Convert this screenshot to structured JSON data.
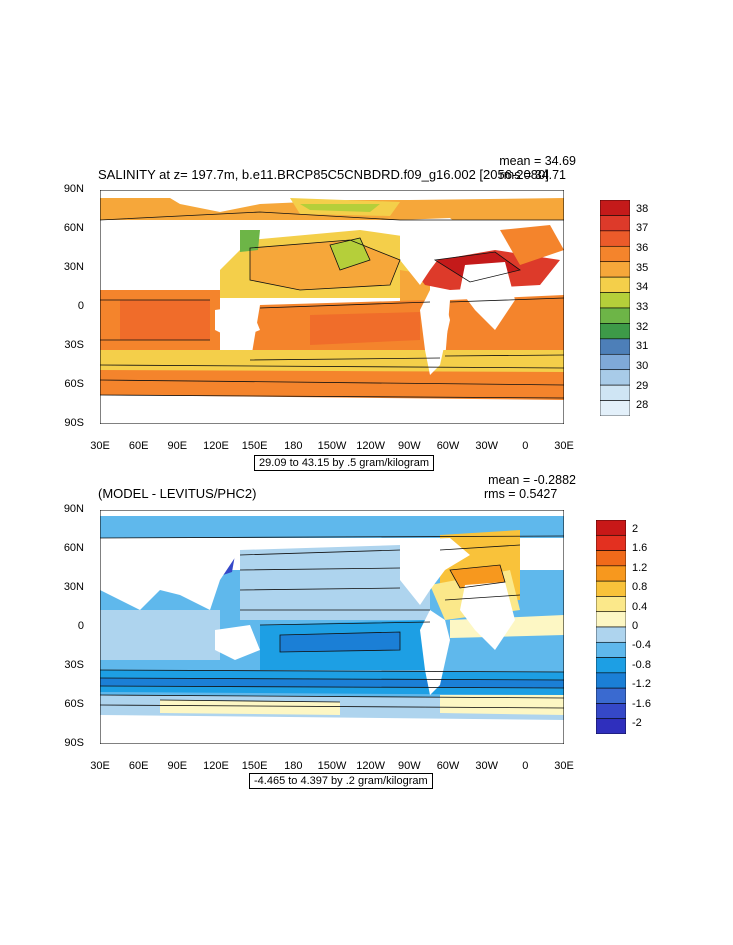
{
  "top": {
    "title": "SALINITY at z= 197.7m, b.e11.BRCP85C5CNBDRD.f09_g16.002 [2056-2080]",
    "mean": "mean = 34.69",
    "rms": "rms = 34.71",
    "contour_info": "29.09 to 43.15 by .5 gram/kilogram",
    "legend_labels": [
      "38",
      "37",
      "36",
      "35",
      "34",
      "33",
      "32",
      "31",
      "30",
      "29",
      "28"
    ],
    "legend_colors": [
      "#c41a1a",
      "#dd3a2a",
      "#ec5b2a",
      "#f4842c",
      "#f6a73a",
      "#f4cf4a",
      "#b5cf3a",
      "#6db547",
      "#3d9a48",
      "#4d7fb8",
      "#7fa9d8",
      "#a8cbe8",
      "#cfe5f4",
      "#e3f0fa"
    ]
  },
  "bottom": {
    "title": "(MODEL - LEVITUS/PHC2)",
    "mean": "mean = -0.2882",
    "rms": "rms = 0.5427",
    "contour_info": "-4.465 to 4.397 by .2 gram/kilogram",
    "legend_labels": [
      "2",
      "1.6",
      "1.2",
      "0.8",
      "0.4",
      "0",
      "-0.4",
      "-0.8",
      "-1.2",
      "-1.6",
      "-2"
    ],
    "legend_colors": [
      "#c81818",
      "#e33020",
      "#f06a1a",
      "#f7981e",
      "#f9c23a",
      "#fbe88a",
      "#fdf7c4",
      "#aed4ee",
      "#5fb8ec",
      "#1d9fe4",
      "#1b7fd6",
      "#3a6ad0",
      "#3548c8",
      "#2f2fbd"
    ]
  },
  "lat_labels": [
    "90N",
    "60N",
    "30N",
    "0",
    "30S",
    "60S",
    "90S"
  ],
  "lon_labels": [
    "30E",
    "60E",
    "90E",
    "120E",
    "150E",
    "180",
    "150W",
    "120W",
    "90W",
    "60W",
    "30W",
    "0",
    "30E"
  ]
}
